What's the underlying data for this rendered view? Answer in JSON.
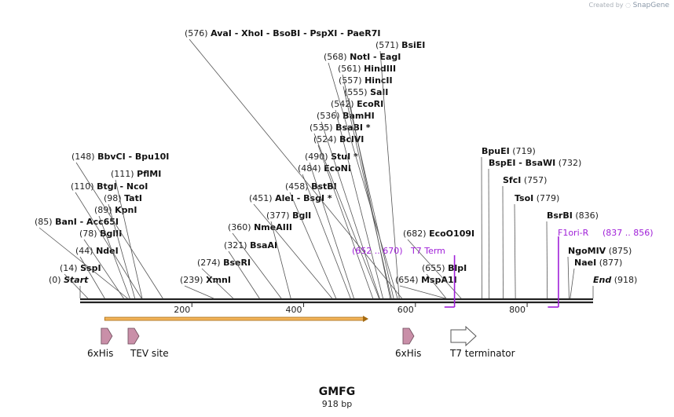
{
  "credit": {
    "prefix": "Created by",
    "brand": "SnapGene"
  },
  "sequence": {
    "name": "GMFG",
    "length_label": "918 bp",
    "length": 918
  },
  "axis": {
    "ticks": [
      200,
      400,
      600,
      800
    ]
  },
  "sites": [
    {
      "pos": "(0)",
      "names": [
        "Start"
      ],
      "italic": true,
      "at": 0
    },
    {
      "pos": "(14)",
      "names": [
        "SspI"
      ],
      "at": 14
    },
    {
      "pos": "(44)",
      "names": [
        "NdeI"
      ],
      "at": 44
    },
    {
      "pos": "(78)",
      "names": [
        "BglII"
      ],
      "at": 78
    },
    {
      "pos": "(85)",
      "names": [
        "BanI",
        "Acc65I"
      ],
      "at": 85
    },
    {
      "pos": "(89)",
      "names": [
        "KpnI"
      ],
      "at": 89
    },
    {
      "pos": "(98)",
      "names": [
        "TatI"
      ],
      "at": 98
    },
    {
      "pos": "(110)",
      "names": [
        "BtgI",
        "NcoI"
      ],
      "at": 110
    },
    {
      "pos": "(111)",
      "names": [
        "PflMI"
      ],
      "at": 111
    },
    {
      "pos": "(148)",
      "names": [
        "BbvCI",
        "Bpu10I"
      ],
      "at": 148
    },
    {
      "pos": "(239)",
      "names": [
        "XmnI"
      ],
      "at": 239
    },
    {
      "pos": "(274)",
      "names": [
        "BseRI"
      ],
      "at": 274
    },
    {
      "pos": "(321)",
      "names": [
        "BsaAI"
      ],
      "at": 321
    },
    {
      "pos": "(360)",
      "names": [
        "NmeAIII"
      ],
      "at": 360
    },
    {
      "pos": "(377)",
      "names": [
        "BglI"
      ],
      "at": 377
    },
    {
      "pos": "(451)",
      "names": [
        "AleI",
        "BsgI *"
      ],
      "at": 451
    },
    {
      "pos": "(458)",
      "names": [
        "BstBI"
      ],
      "at": 458
    },
    {
      "pos": "(484)",
      "names": [
        "EcoNI"
      ],
      "at": 484
    },
    {
      "pos": "(490)",
      "names": [
        "StuI *"
      ],
      "at": 490
    },
    {
      "pos": "(524)",
      "names": [
        "BclVI"
      ],
      "at": 524
    },
    {
      "pos": "(535)",
      "names": [
        "BsaBI *"
      ],
      "at": 535
    },
    {
      "pos": "(536)",
      "names": [
        "BamHI"
      ],
      "at": 536
    },
    {
      "pos": "(542)",
      "names": [
        "EcoRI"
      ],
      "at": 542
    },
    {
      "pos": "(555)",
      "names": [
        "SalI"
      ],
      "at": 555
    },
    {
      "pos": "(557)",
      "names": [
        "HincII"
      ],
      "at": 557
    },
    {
      "pos": "(561)",
      "names": [
        "HindIII"
      ],
      "at": 561
    },
    {
      "pos": "(568)",
      "names": [
        "NotI",
        "EagI"
      ],
      "at": 568
    },
    {
      "pos": "(571)",
      "names": [
        "BsiEI"
      ],
      "at": 571
    },
    {
      "pos": "(576)",
      "names": [
        "AvaI",
        "XhoI",
        "BsoBI",
        "PspXI",
        "PaeR7I"
      ],
      "at": 576
    },
    {
      "pos": "(654)",
      "names": [
        "MspA1I"
      ],
      "at": 654
    },
    {
      "pos": "(655)",
      "names": [
        "BlpI"
      ],
      "at": 655
    },
    {
      "pos": "(682)",
      "names": [
        "EcoO109I"
      ],
      "at": 682
    },
    {
      "pos": "(719)",
      "names": [
        "BpuEI"
      ],
      "at": 719,
      "pos_after": true
    },
    {
      "pos": "(732)",
      "names": [
        "BspEI",
        "BsaWI"
      ],
      "at": 732,
      "pos_after": true
    },
    {
      "pos": "(757)",
      "names": [
        "SfcI"
      ],
      "at": 757,
      "pos_after": true
    },
    {
      "pos": "(779)",
      "names": [
        "TsoI"
      ],
      "at": 779,
      "pos_after": true
    },
    {
      "pos": "(836)",
      "names": [
        "BsrBI"
      ],
      "at": 836,
      "pos_after": true
    },
    {
      "pos": "(875)",
      "names": [
        "NgoMIV"
      ],
      "at": 875,
      "pos_after": true
    },
    {
      "pos": "(877)",
      "names": [
        "NaeI"
      ],
      "at": 877,
      "pos_after": true
    },
    {
      "pos": "(918)",
      "names": [
        "End"
      ],
      "italic": true,
      "at": 918,
      "pos_after": true
    }
  ],
  "primer_sites": [
    {
      "name": "T7 Term",
      "range": "(652 .. 670)",
      "start": 652,
      "end": 670,
      "color": "#a020d8"
    },
    {
      "name": "F1ori-R",
      "range": "(837 .. 856)",
      "start": 837,
      "end": 856,
      "color": "#a020d8"
    }
  ],
  "features": [
    {
      "name": "6xHis",
      "kind": "tag",
      "at": 49,
      "color": "#c98fa8"
    },
    {
      "name": "TEV site",
      "kind": "tag",
      "at": 97,
      "color": "#c98fa8"
    },
    {
      "name": "6xHis",
      "kind": "tag",
      "at": 589,
      "color": "#c98fa8"
    },
    {
      "name": "T7 terminator",
      "kind": "terminator",
      "at": 668,
      "color": "#ffffff"
    }
  ],
  "orf": {
    "start": 44,
    "end": 516,
    "color": "#f3b45a",
    "stroke": "#a56a10"
  },
  "colors": {
    "backbone": "#222222",
    "leader": "#555555",
    "label": "#111111",
    "pos": "#222222"
  }
}
